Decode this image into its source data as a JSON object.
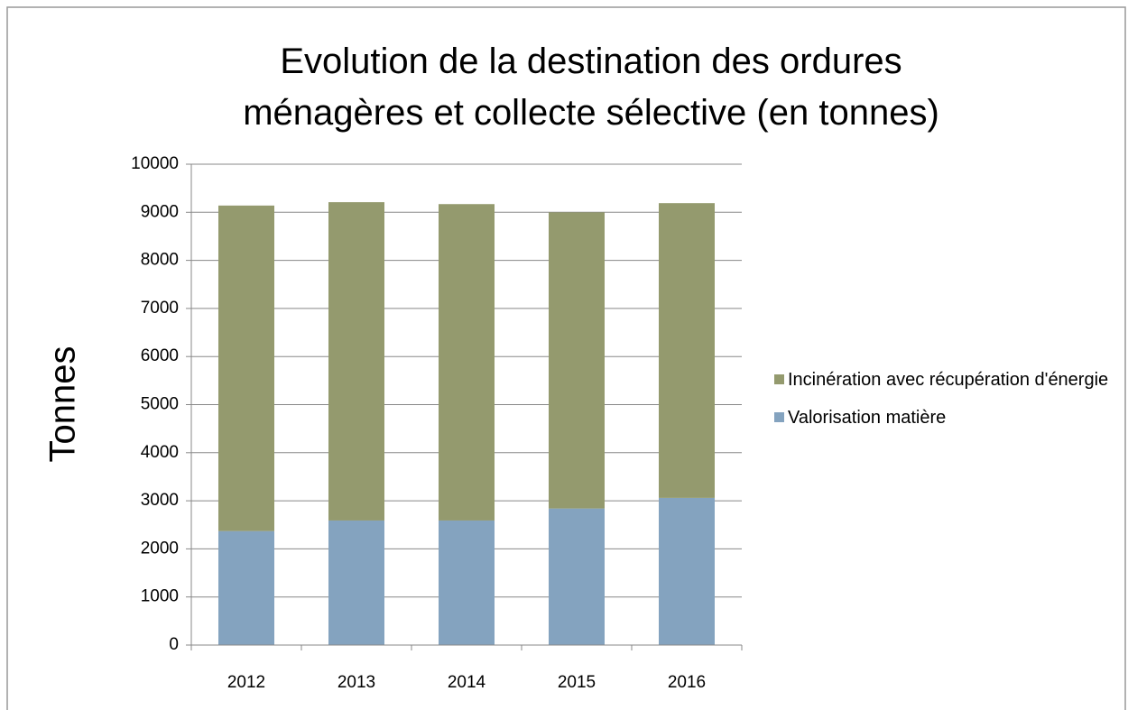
{
  "chart_data": {
    "type": "stacked_bar",
    "title": "Evolution de la destination des ordures ménagères et collecte sélective (en tonnes)",
    "ylabel": "Tonnes",
    "categories": [
      "2012",
      "2013",
      "2014",
      "2015",
      "2016"
    ],
    "series": [
      {
        "name": "Valorisation matière",
        "color": "#84a3bf",
        "values": [
          2370,
          2590,
          2590,
          2840,
          3060
        ]
      },
      {
        "name": "Incinération avec récupération d'énergie",
        "color": "#949a6e",
        "values": [
          6770,
          6620,
          6580,
          6160,
          6130
        ]
      }
    ],
    "ylim": [
      0,
      10000
    ],
    "yticks": [
      0,
      1000,
      2000,
      3000,
      4000,
      5000,
      6000,
      7000,
      8000,
      9000,
      10000
    ],
    "grid": true,
    "legend": "right"
  }
}
